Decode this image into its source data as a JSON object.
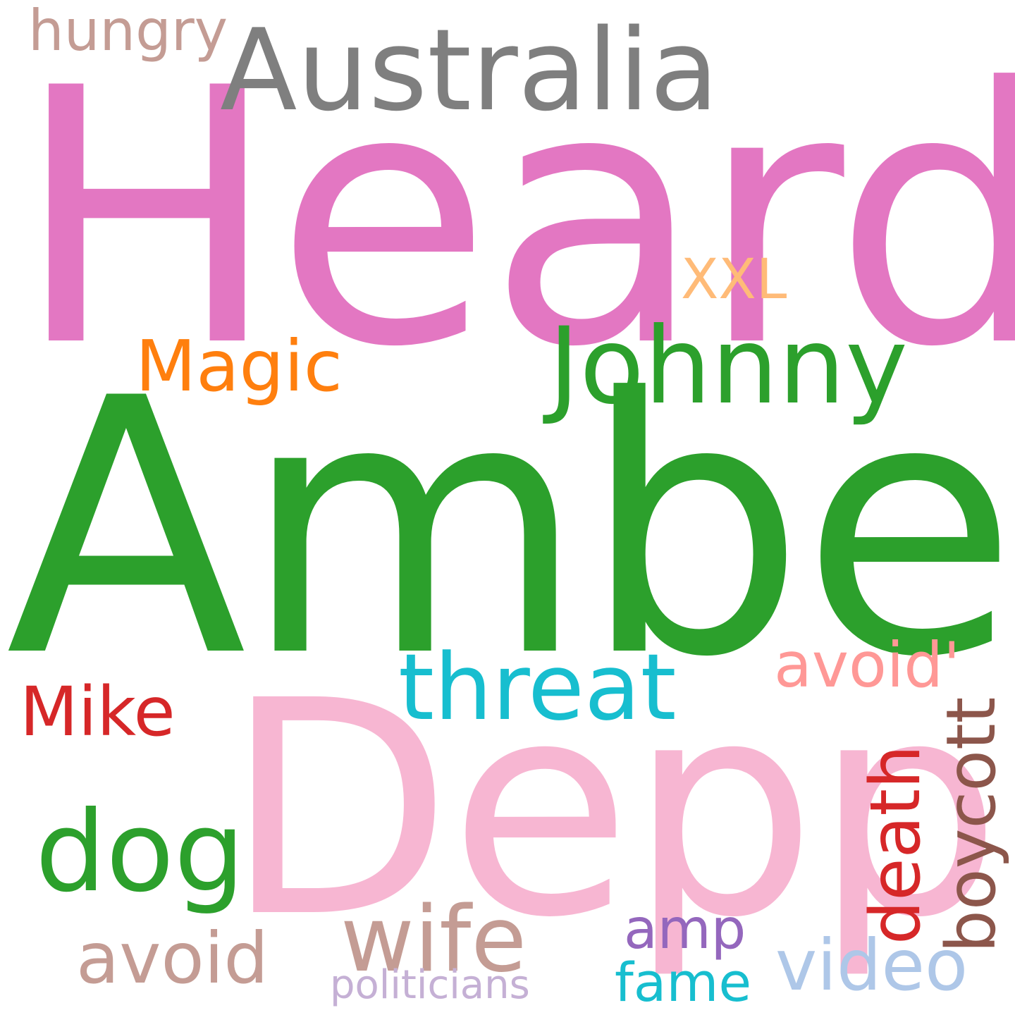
{
  "words": {
    "heard": {
      "text": "Heard",
      "color": "#e377c2"
    },
    "amber": {
      "text": "Amber",
      "color": "#2ca02c"
    },
    "depp": {
      "text": "Depp",
      "color": "#f7b6d2"
    },
    "australia": {
      "text": "Australia",
      "color": "#7f7f7f"
    },
    "johnny": {
      "text": "Johnny",
      "color": "#2ca02c"
    },
    "magic": {
      "text": "Magic",
      "color": "#ff7f0e"
    },
    "xxl": {
      "text": "XXL",
      "color": "#ffbb78"
    },
    "hungry": {
      "text": "hungry",
      "color": "#c49c94"
    },
    "threat": {
      "text": "threat",
      "color": "#17becf"
    },
    "avoid_quote": {
      "text": "avoid'",
      "color": "#ff9896"
    },
    "mike": {
      "text": "Mike",
      "color": "#d62728"
    },
    "dog": {
      "text": "dog",
      "color": "#2ca02c"
    },
    "wife": {
      "text": "wife",
      "color": "#c49c94"
    },
    "avoid": {
      "text": "avoid",
      "color": "#c49c94"
    },
    "amp": {
      "text": "amp",
      "color": "#9467bd"
    },
    "fame": {
      "text": "fame",
      "color": "#17becf"
    },
    "video": {
      "text": "video",
      "color": "#aec7e8"
    },
    "politicians": {
      "text": "politicians",
      "color": "#c5b0d5"
    },
    "death": {
      "text": "death",
      "color": "#d62728"
    },
    "boycott": {
      "text": "boycott",
      "color": "#8c564b"
    }
  }
}
